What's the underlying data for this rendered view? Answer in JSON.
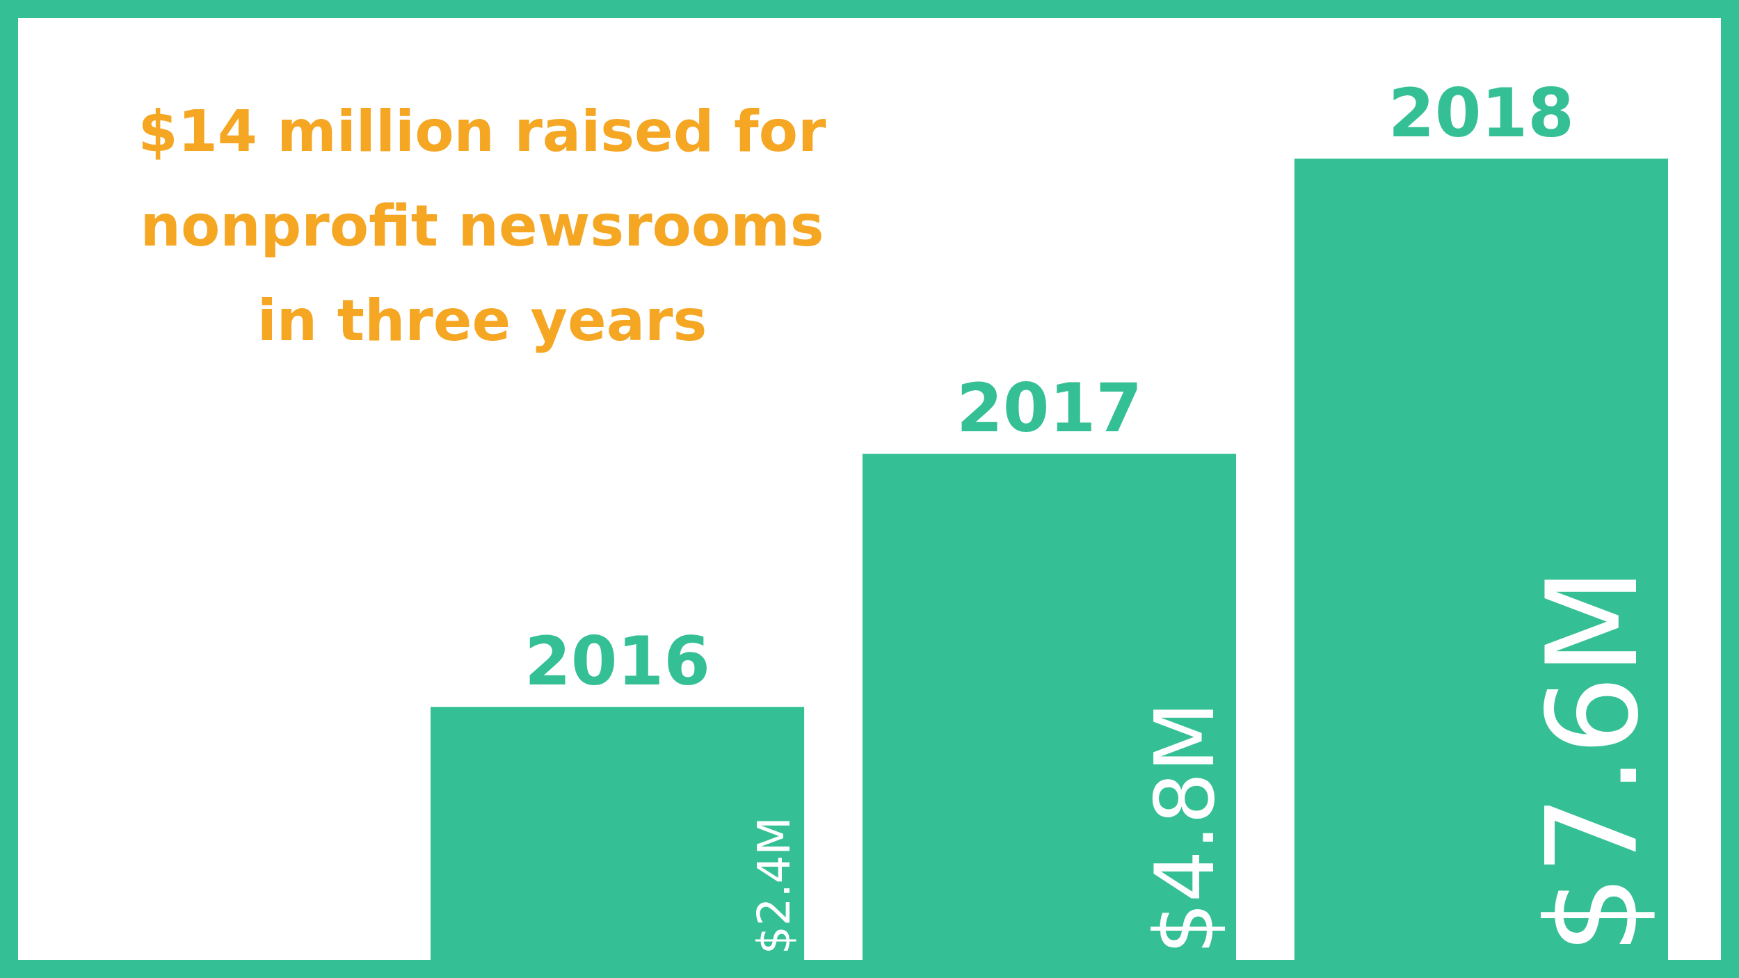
{
  "chart_data": {
    "type": "bar",
    "title": "$14 million raised for nonprofit newsrooms in three years",
    "categories": [
      "2016",
      "2017",
      "2018"
    ],
    "values": [
      2.4,
      4.8,
      7.6
    ],
    "value_labels": [
      "$2.4M",
      "$4.8M",
      "$7.6M"
    ],
    "color": "#34bf94"
  }
}
